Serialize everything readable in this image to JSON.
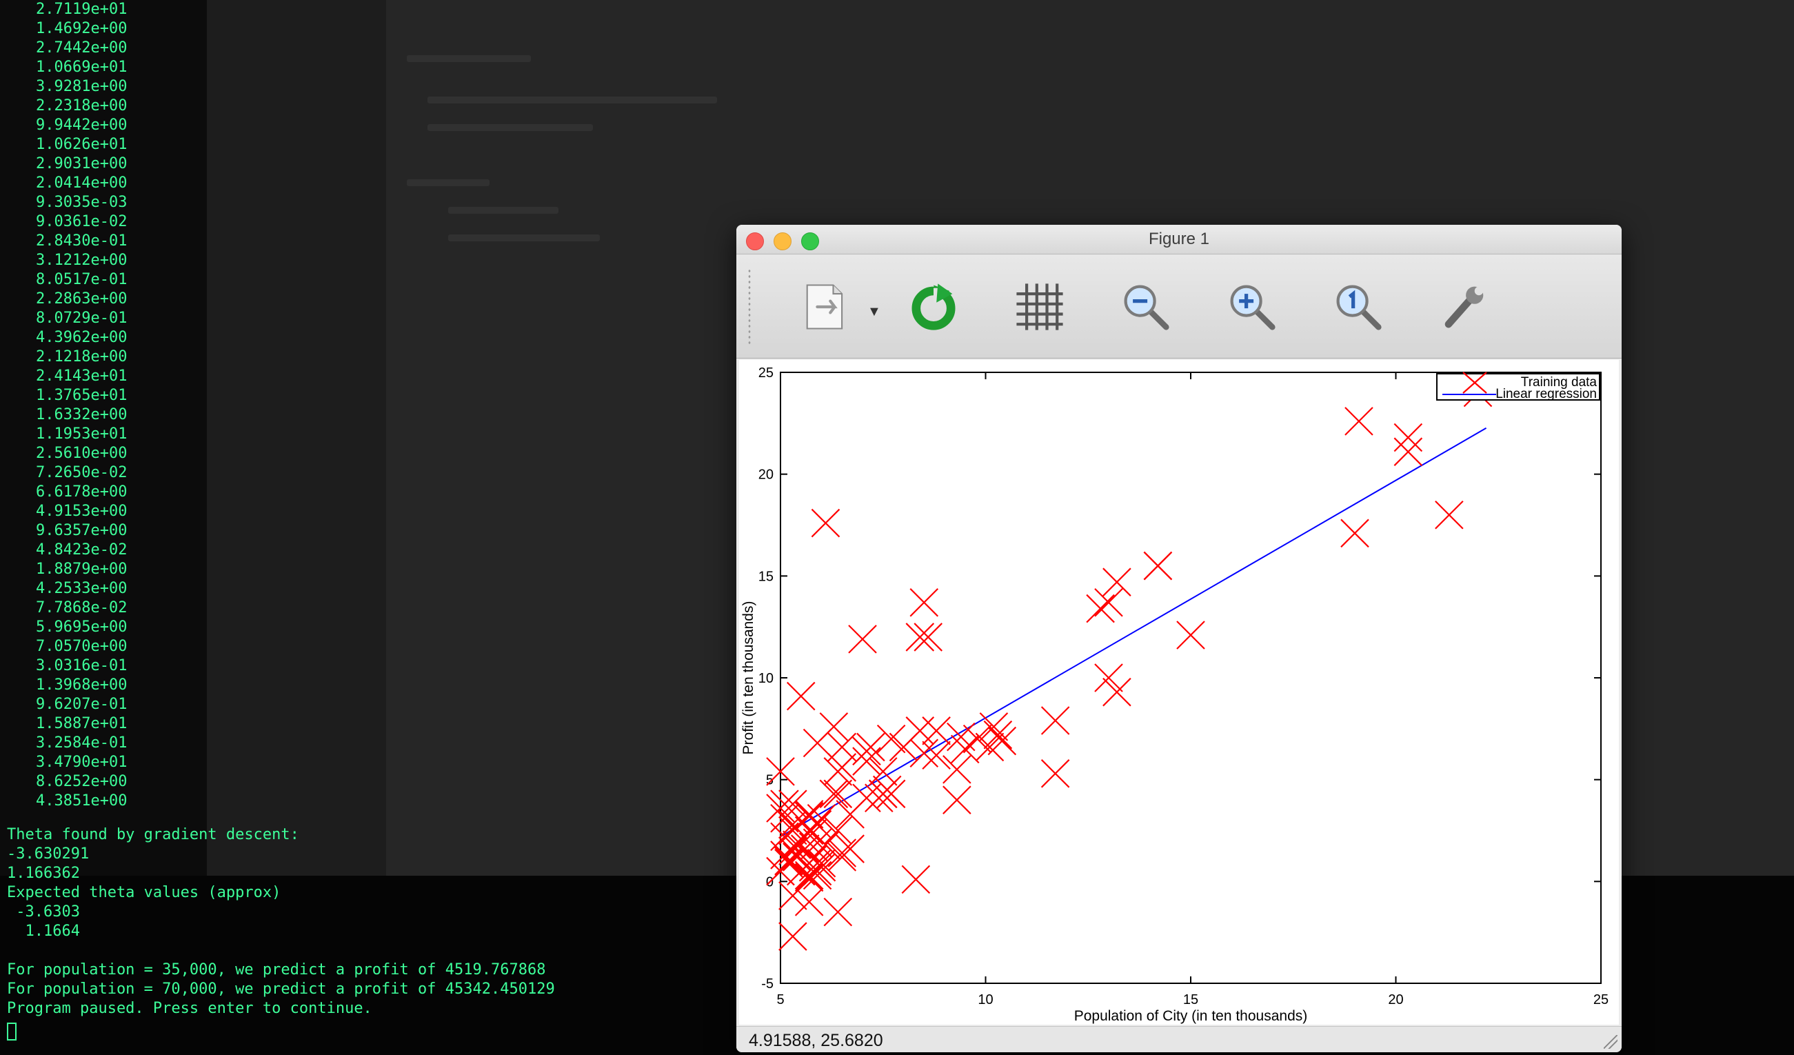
{
  "terminal": {
    "numbers": [
      "2.7119e+01",
      "1.4692e+00",
      "2.7442e+00",
      "1.0669e+01",
      "3.9281e+00",
      "2.2318e+00",
      "9.9442e+00",
      "1.0626e+01",
      "2.9031e+00",
      "2.0414e+00",
      "9.3035e-03",
      "9.0361e-02",
      "2.8430e-01",
      "3.1212e+00",
      "8.0517e-01",
      "2.2863e+00",
      "8.0729e-01",
      "4.3962e+00",
      "2.1218e+00",
      "2.4143e+01",
      "1.3765e+01",
      "1.6332e+00",
      "1.1953e+01",
      "2.5610e+00",
      "7.2650e-02",
      "6.6178e+00",
      "4.9153e+00",
      "9.6357e+00",
      "4.8423e-02",
      "1.8879e+00",
      "4.2533e+00",
      "7.7868e-02",
      "5.9695e+00",
      "7.0570e+00",
      "3.0316e-01",
      "1.3968e+00",
      "9.6207e-01",
      "1.5887e+01",
      "3.2584e-01",
      "3.4790e+01",
      "8.6252e+00",
      "4.3851e+00"
    ],
    "output": [
      "Theta found by gradient descent:",
      "-3.630291",
      "1.166362",
      "Expected theta values (approx)",
      " -3.6303",
      "  1.1664",
      "",
      "For population = 35,000, we predict a profit of 4519.767868",
      "For population = 70,000, we predict a profit of 45342.450129",
      "Program paused. Press enter to continue."
    ],
    "color": "#3dff9a"
  },
  "figure_window": {
    "title": "Figure 1",
    "toolbar": {
      "icons": [
        "export-icon",
        "refresh-icon",
        "grid-icon",
        "zoom-out-icon",
        "zoom-in-icon",
        "zoom-reset-icon",
        "settings-wrench-icon"
      ],
      "dropdown_glyph": "▼"
    },
    "status_coords": "4.91588,  25.6820"
  },
  "chart_data": {
    "type": "scatter",
    "title": "",
    "xlabel": "Population of City (in ten thousands)",
    "ylabel": "Profit (in ten thousands)",
    "xlim": [
      5,
      25
    ],
    "ylim": [
      -5,
      25
    ],
    "xticks": [
      5,
      10,
      15,
      20,
      25
    ],
    "yticks": [
      -5,
      0,
      5,
      10,
      15,
      20,
      25
    ],
    "legend": {
      "position": "top-right",
      "entries": [
        "Training data",
        "Linear regression"
      ]
    },
    "series": [
      {
        "name": "Training data",
        "marker": "x",
        "color": "#ff0000",
        "x": [
          6.1,
          5.5,
          8.5,
          7.0,
          5.9,
          8.4,
          7.5,
          8.6,
          6.5,
          5.1,
          5.7,
          14.2,
          5.7,
          6.4,
          5.1,
          5.3,
          6.4,
          7.1,
          5.7,
          14.2,
          15.0,
          5.3,
          7.2,
          7.1,
          6.1,
          7.5,
          6.7,
          6.5,
          5.0,
          5.3,
          5.2,
          7.7,
          6.5,
          5.4,
          5.8,
          5.0,
          5.2,
          5.5,
          6.7,
          6.0,
          5.9,
          5.9,
          8.3,
          8.8,
          5.1,
          5.9,
          5.8,
          6.0,
          5.9,
          5.8,
          6.5,
          7.5,
          8.0,
          9.4,
          5.1,
          5.7,
          5.3,
          5.7,
          6.3,
          5.3,
          5.8,
          6.4,
          13.2,
          8.4,
          9.8,
          13.0,
          7.6,
          6.3,
          11.7,
          10.4,
          8.5,
          11.7,
          10.2,
          7.4,
          9.3,
          8.8,
          9.3,
          7.7,
          9.5,
          10.3,
          5.7,
          6.0,
          6.4,
          5.3,
          5.9,
          7.1,
          13.0,
          13.2,
          19.0,
          12.8,
          20.3,
          21.3,
          22.0,
          20.3,
          19.1,
          10.1,
          5.0,
          5.7,
          5.6,
          5.4
        ],
        "y": [
          17.6,
          9.1,
          13.7,
          11.9,
          6.8,
          12.0,
          4.3,
          12.0,
          6.6,
          3.8,
          3.3,
          15.5,
          3.2,
          5.4,
          3.1,
          3.8,
          4.3,
          6.4,
          2.5,
          15.5,
          12.1,
          2.8,
          6.6,
          4.1,
          1.8,
          5.4,
          3.3,
          1.4,
          3.6,
          1.5,
          1.0,
          4.3,
          5.6,
          1.8,
          1.7,
          0.5,
          0.9,
          0.5,
          1.6,
          0.7,
          2.8,
          1.9,
          0.1,
          6.2,
          1.3,
          0.9,
          2.4,
          3.1,
          0.5,
          0.7,
          1.2,
          4.3,
          6.6,
          7.1,
          2.2,
          0.3,
          2.5,
          0.2,
          7.6,
          -0.7,
          1.1,
          -1.5,
          14.7,
          7.4,
          7.0,
          10.0,
          4.5,
          4.3,
          7.9,
          6.9,
          6.3,
          5.3,
          7.6,
          4.1,
          4.0,
          7.4,
          5.5,
          7.0,
          6.5,
          7.2,
          -1.0,
          0.9,
          2.5,
          -2.7,
          0.3,
          5.9,
          13.7,
          9.3,
          17.1,
          13.4,
          21.8,
          18.0,
          24.0,
          21.1,
          22.6,
          6.6,
          5.4,
          0.9,
          1.6,
          1.2
        ]
      },
      {
        "name": "Linear regression",
        "color": "#0000ff",
        "x": [
          5.0269,
          22.203
        ],
        "y": [
          2.2326,
          22.266
        ]
      }
    ]
  }
}
